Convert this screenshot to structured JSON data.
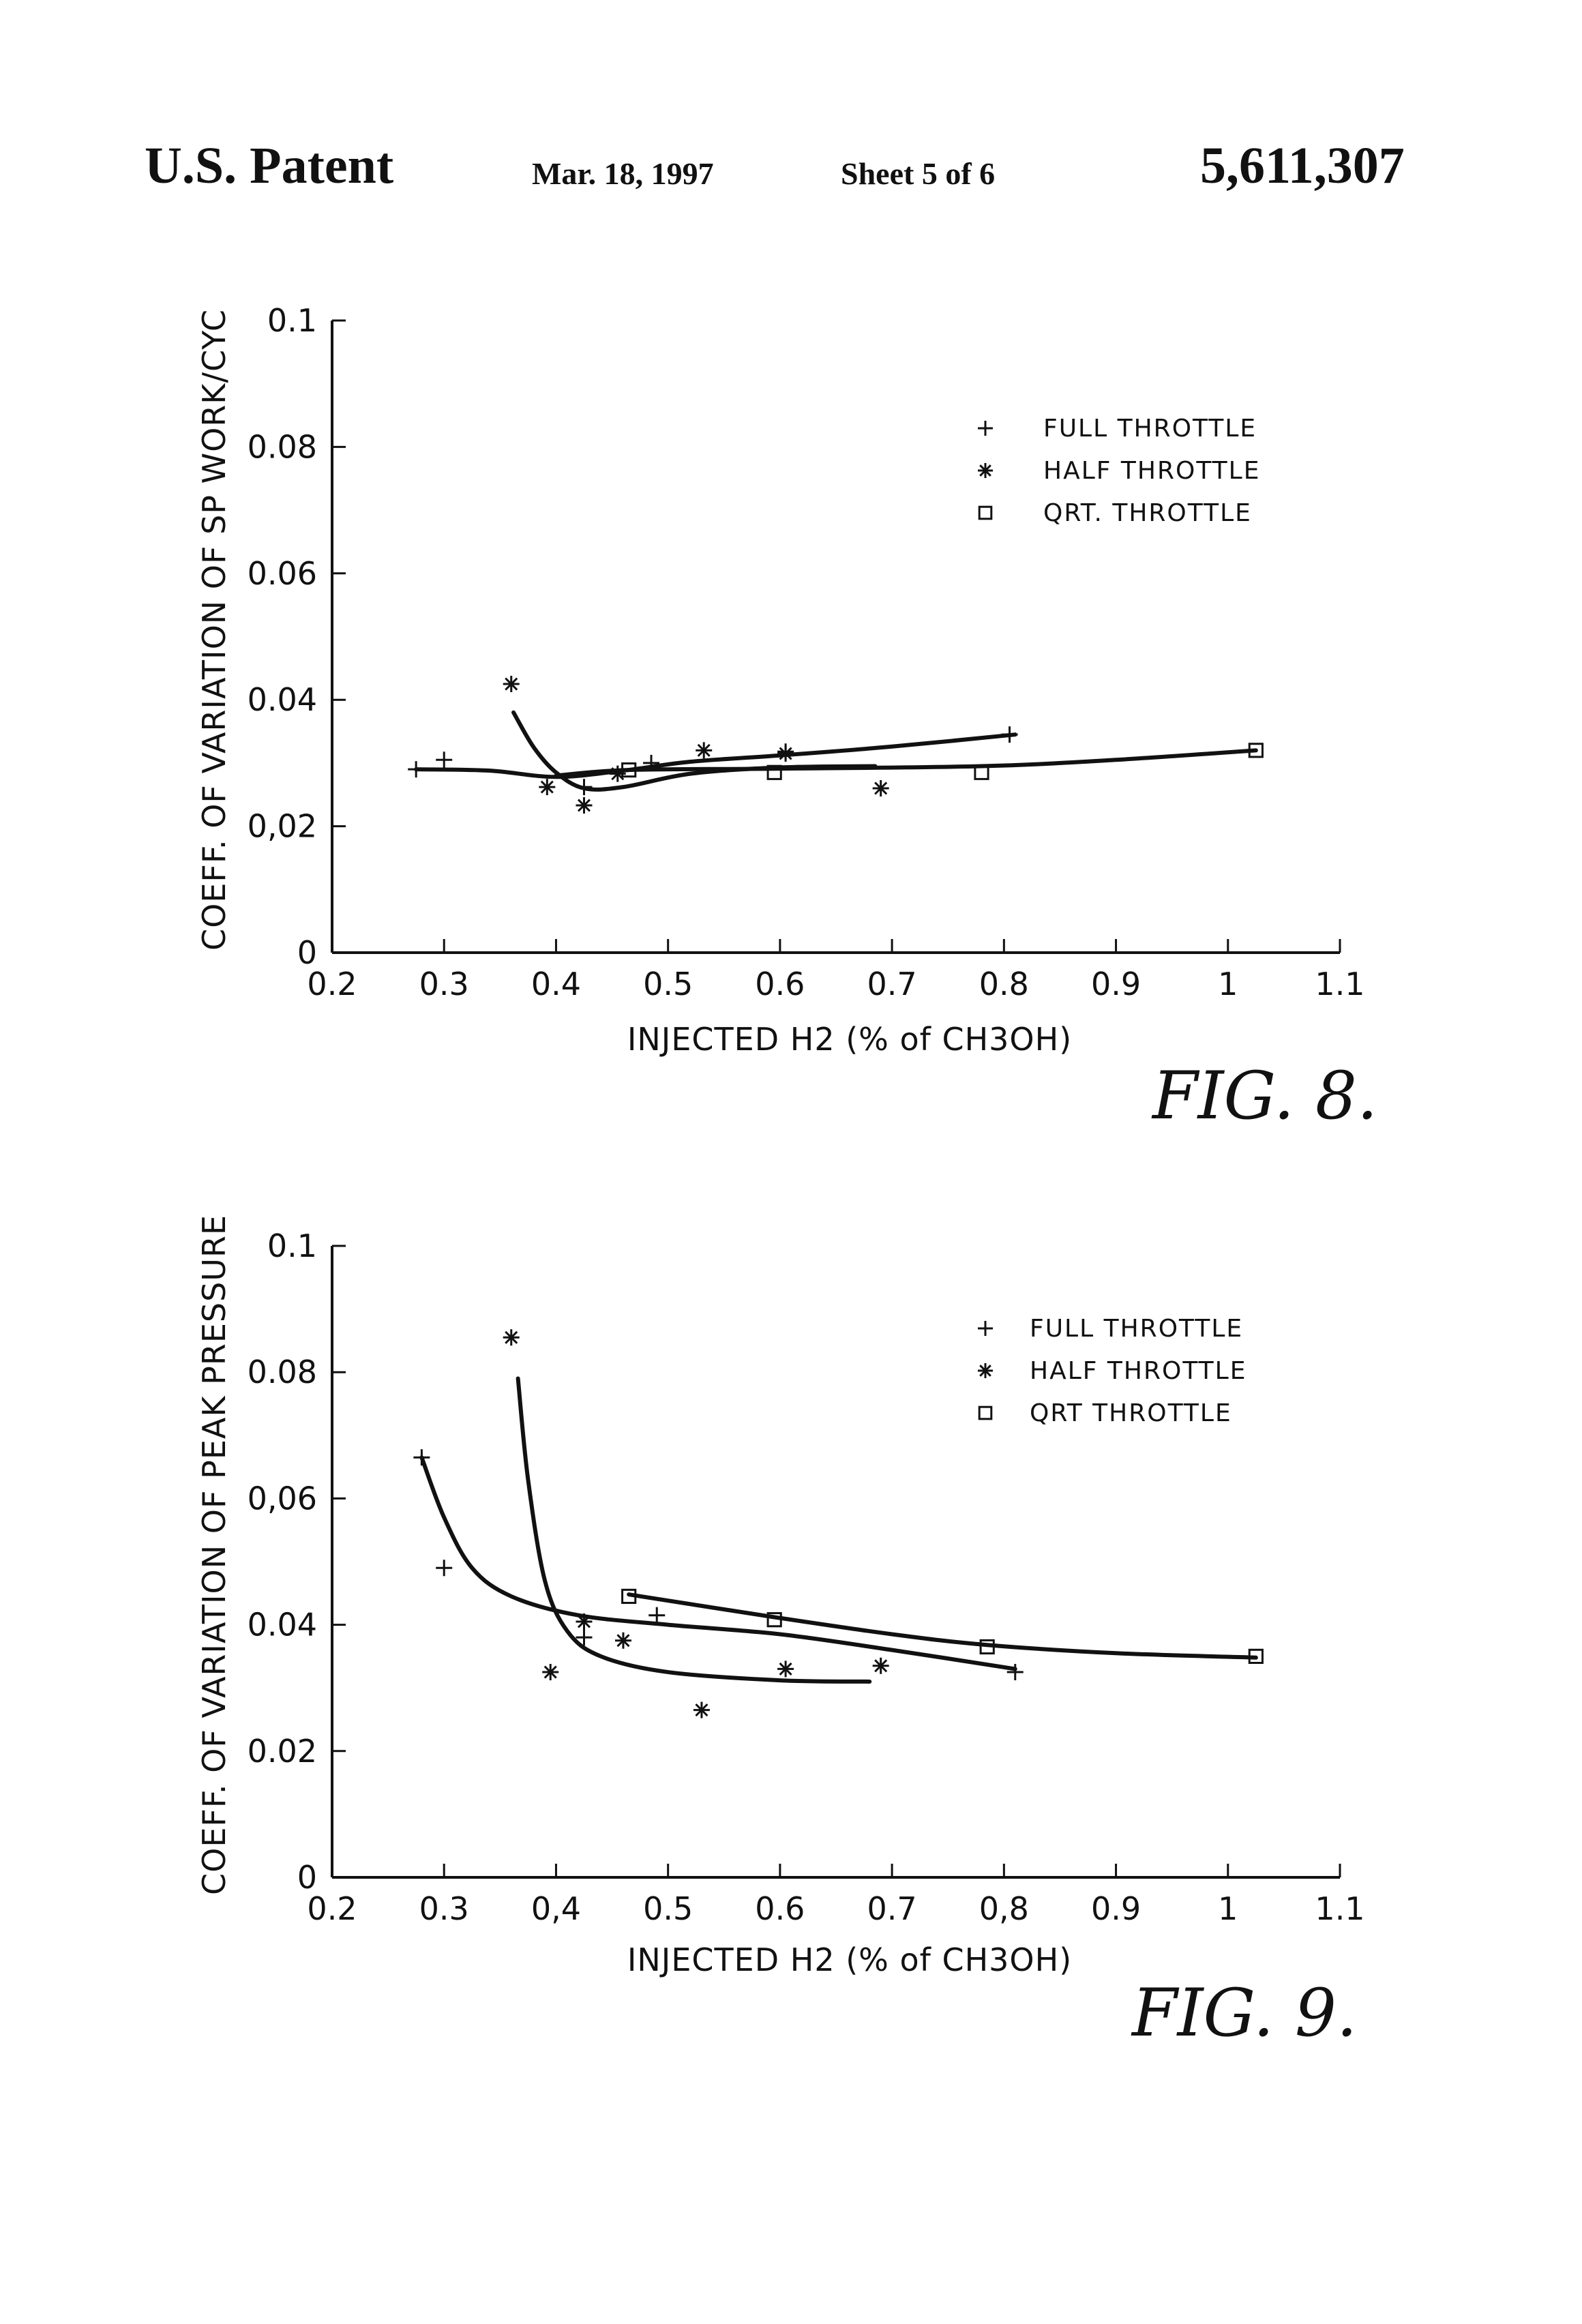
{
  "header": {
    "patent": "U.S. Patent",
    "date": "Mar. 18, 1997",
    "sheet": "Sheet 5 of 6",
    "number": "5,611,307"
  },
  "legend_symbols": [
    "+",
    "✱",
    "□"
  ],
  "chart_data": [
    {
      "type": "scatter",
      "figure_label": "FIG. 8.",
      "ylabel": "COEFF. OF VARIATION OF SP WORK/CYC",
      "xlabel": "INJECTED H2 (% of CH3OH)",
      "xlim": [
        0.2,
        1.1
      ],
      "ylim": [
        0,
        0.1
      ],
      "x_ticks": [
        0.2,
        0.3,
        0.4,
        0.5,
        0.6,
        0.7,
        0.8,
        0.9,
        1,
        1.1
      ],
      "x_tick_labels": [
        "0.2",
        "0.3",
        "0.4",
        "0.5",
        "0.6",
        "0.7",
        "0.8",
        "0.9",
        "1",
        "1.1"
      ],
      "y_ticks": [
        0,
        0.02,
        0.04,
        0.06,
        0.08,
        0.1
      ],
      "y_tick_labels": [
        "0",
        "0,02",
        "0.04",
        "0.06",
        "0.08",
        "0.1"
      ],
      "legend_position": "top-right",
      "series": [
        {
          "name": "FULL THROTTLE",
          "marker": "plus",
          "points": [
            [
              0.275,
              0.029
            ],
            [
              0.3,
              0.0305
            ],
            [
              0.425,
              0.0262
            ],
            [
              0.485,
              0.03
            ],
            [
              0.605,
              0.0318
            ],
            [
              0.805,
              0.0345
            ]
          ],
          "curve": [
            [
              0.275,
              0.029
            ],
            [
              0.34,
              0.0288
            ],
            [
              0.4,
              0.0278
            ],
            [
              0.46,
              0.0288
            ],
            [
              0.52,
              0.0302
            ],
            [
              0.6,
              0.0312
            ],
            [
              0.7,
              0.0326
            ],
            [
              0.81,
              0.0345
            ]
          ]
        },
        {
          "name": "HALF THROTTLE",
          "marker": "asterisk",
          "points": [
            [
              0.36,
              0.0425
            ],
            [
              0.392,
              0.0262
            ],
            [
              0.425,
              0.0233
            ],
            [
              0.455,
              0.0283
            ],
            [
              0.532,
              0.032
            ],
            [
              0.605,
              0.0315
            ],
            [
              0.69,
              0.026
            ]
          ],
          "curve": [
            [
              0.362,
              0.038
            ],
            [
              0.38,
              0.0325
            ],
            [
              0.4,
              0.0285
            ],
            [
              0.425,
              0.026
            ],
            [
              0.46,
              0.0262
            ],
            [
              0.52,
              0.0283
            ],
            [
              0.6,
              0.0293
            ],
            [
              0.685,
              0.0295
            ]
          ]
        },
        {
          "name": "QRT. THROTTLE",
          "marker": "square",
          "points": [
            [
              0.465,
              0.0289
            ],
            [
              0.595,
              0.0285
            ],
            [
              0.78,
              0.0285
            ],
            [
              1.025,
              0.032
            ]
          ],
          "curve": [
            [
              0.4,
              0.028
            ],
            [
              0.465,
              0.0289
            ],
            [
              0.595,
              0.0291
            ],
            [
              0.78,
              0.0295
            ],
            [
              0.9,
              0.0305
            ],
            [
              1.025,
              0.032
            ]
          ]
        }
      ]
    },
    {
      "type": "scatter",
      "figure_label": "FIG. 9.",
      "ylabel": "COEFF. OF VARIATION OF PEAK PRESSURE",
      "xlabel": "INJECTED H2 (% of CH3OH)",
      "xlim": [
        0.2,
        1.1
      ],
      "ylim": [
        0,
        0.1
      ],
      "x_ticks": [
        0.2,
        0.3,
        0.4,
        0.5,
        0.6,
        0.7,
        0.8,
        0.9,
        1,
        1.1
      ],
      "x_tick_labels": [
        "0.2",
        "0.3",
        "0,4",
        "0.5",
        "0.6",
        "0.7",
        "0,8",
        "0.9",
        "1",
        "1.1"
      ],
      "y_ticks": [
        0,
        0.02,
        0.04,
        0.06,
        0.08,
        0.1
      ],
      "y_tick_labels": [
        "0",
        "0.02",
        "0.04",
        "0,06",
        "0.08",
        "0.1"
      ],
      "legend_position": "top-right",
      "series": [
        {
          "name": "FULL THROTTLE",
          "marker": "plus",
          "points": [
            [
              0.28,
              0.0665
            ],
            [
              0.3,
              0.049
            ],
            [
              0.425,
              0.038
            ],
            [
              0.49,
              0.0415
            ],
            [
              0.81,
              0.0325
            ]
          ],
          "curve": [
            [
              0.28,
              0.0665
            ],
            [
              0.3,
              0.057
            ],
            [
              0.325,
              0.049
            ],
            [
              0.36,
              0.0445
            ],
            [
              0.42,
              0.0415
            ],
            [
              0.5,
              0.04
            ],
            [
              0.6,
              0.0385
            ],
            [
              0.7,
              0.036
            ],
            [
              0.81,
              0.033
            ]
          ]
        },
        {
          "name": "HALF THROTTLE",
          "marker": "asterisk",
          "points": [
            [
              0.36,
              0.0855
            ],
            [
              0.395,
              0.0325
            ],
            [
              0.425,
              0.0405
            ],
            [
              0.46,
              0.0375
            ],
            [
              0.53,
              0.0265
            ],
            [
              0.605,
              0.033
            ],
            [
              0.69,
              0.0335
            ]
          ],
          "curve": [
            [
              0.366,
              0.079
            ],
            [
              0.375,
              0.063
            ],
            [
              0.39,
              0.047
            ],
            [
              0.41,
              0.039
            ],
            [
              0.44,
              0.035
            ],
            [
              0.5,
              0.0325
            ],
            [
              0.6,
              0.0312
            ],
            [
              0.68,
              0.031
            ]
          ]
        },
        {
          "name": "QRT THROTTLE",
          "marker": "square",
          "points": [
            [
              0.465,
              0.0445
            ],
            [
              0.595,
              0.0408
            ],
            [
              0.785,
              0.0365
            ],
            [
              1.025,
              0.035
            ]
          ],
          "curve": [
            [
              0.465,
              0.0448
            ],
            [
              0.595,
              0.0412
            ],
            [
              0.7,
              0.0385
            ],
            [
              0.785,
              0.0368
            ],
            [
              0.9,
              0.0355
            ],
            [
              1.025,
              0.0348
            ]
          ]
        }
      ]
    }
  ]
}
